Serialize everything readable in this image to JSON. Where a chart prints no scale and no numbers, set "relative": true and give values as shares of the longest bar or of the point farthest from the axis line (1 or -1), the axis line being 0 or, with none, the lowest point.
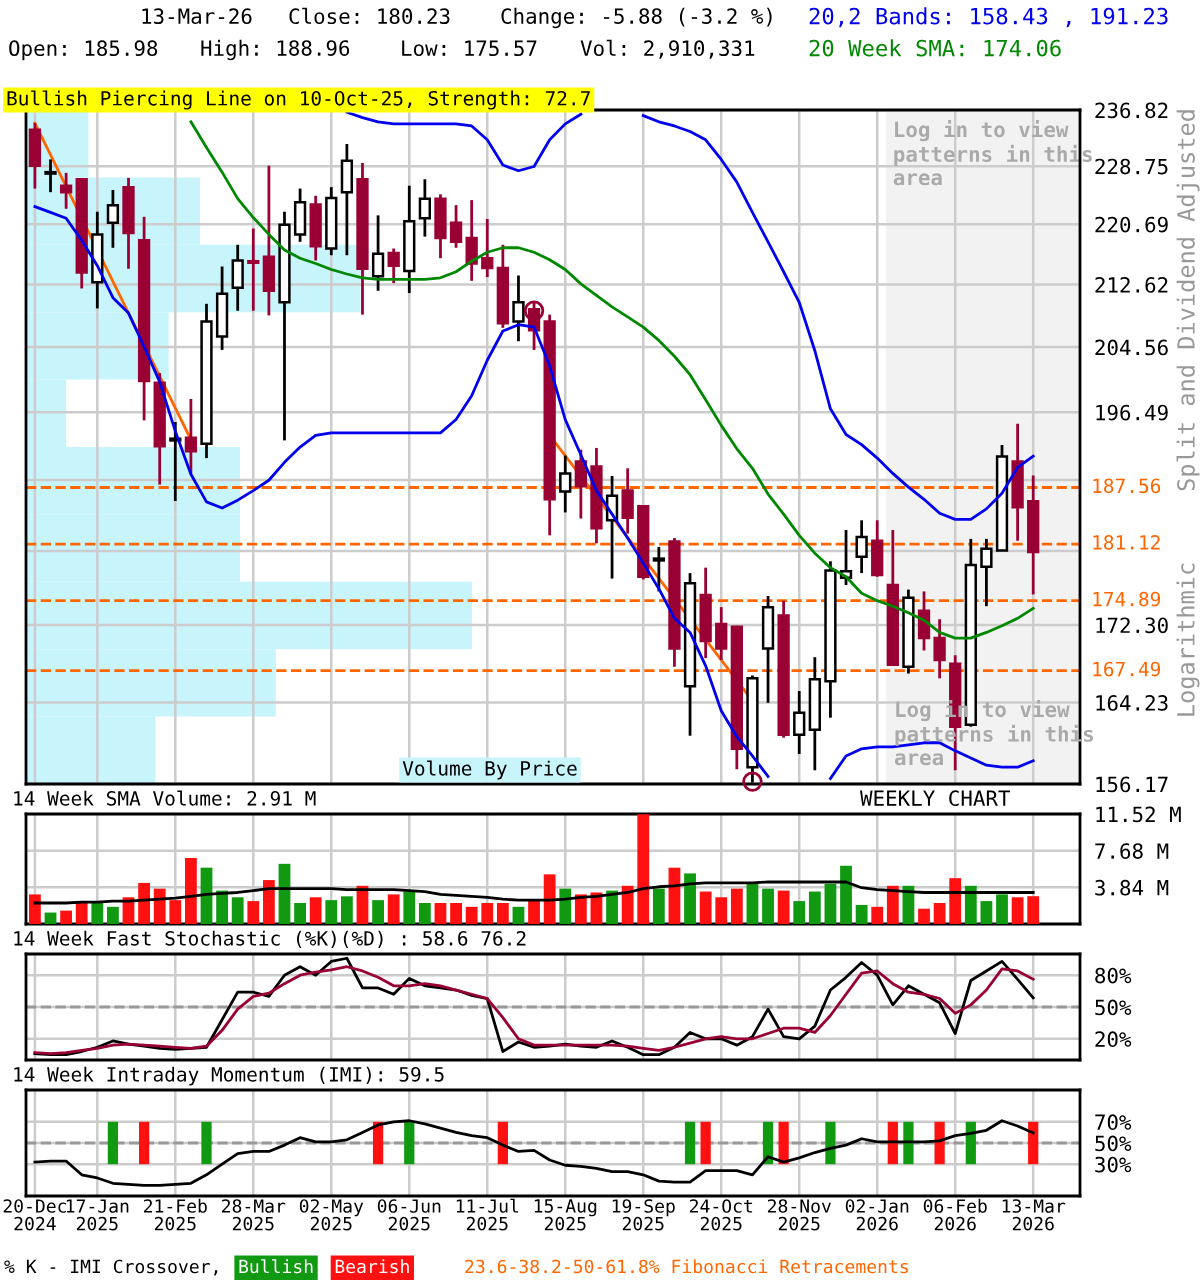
{
  "chart_data": [
    {
      "type": "candlestick",
      "title": "Bullish Piercing Line on 10-Oct-25, Strength: 72.7",
      "ylabel": "Split and Dividend Adjusted",
      "annotations": [
        "13-Mar-26",
        "Close: 180.23",
        "Change: -5.88 (-3.2 %)",
        "Open: 185.98",
        "High: 188.96",
        "Low: 175.57",
        "Vol: 2,910,331",
        "Log in to view patterns in this area",
        "Logarithmic",
        "23.6-38.2-50-61.8% Fibonacci Retracements"
      ],
      "x": [
        "2024-12-20",
        "2024-12-27",
        "2025-01-03",
        "2025-01-10",
        "2025-01-17",
        "2025-01-24",
        "2025-01-31",
        "2025-02-07",
        "2025-02-14",
        "2025-02-21",
        "2025-02-28",
        "2025-03-07",
        "2025-03-14",
        "2025-03-21",
        "2025-03-28",
        "2025-04-04",
        "2025-04-11",
        "2025-04-18",
        "2025-04-25",
        "2025-05-02",
        "2025-05-09",
        "2025-05-16",
        "2025-05-23",
        "2025-05-30",
        "2025-06-06",
        "2025-06-13",
        "2025-06-20",
        "2025-06-27",
        "2025-07-04",
        "2025-07-11",
        "2025-07-18",
        "2025-07-25",
        "2025-08-01",
        "2025-08-08",
        "2025-08-15",
        "2025-08-22",
        "2025-08-29",
        "2025-09-05",
        "2025-09-12",
        "2025-09-19",
        "2025-09-26",
        "2025-10-03",
        "2025-10-10",
        "2025-10-17",
        "2025-10-24",
        "2025-10-31",
        "2025-11-07",
        "2025-11-14",
        "2025-11-21",
        "2025-11-28",
        "2025-12-05",
        "2025-12-12",
        "2025-12-19",
        "2025-12-26",
        "2026-01-02",
        "2026-01-09",
        "2026-01-16",
        "2026-01-23",
        "2026-01-30",
        "2026-02-06",
        "2026-02-13",
        "2026-02-20",
        "2026-02-27",
        "2026-03-06",
        "2026-03-13"
      ],
      "ohlc": [
        [
          233.95,
          234.9,
          225.6,
          228.8
        ],
        [
          227.7,
          229.7,
          225.1,
          227.9
        ],
        [
          226.0,
          227.8,
          222.8,
          225.1
        ],
        [
          226.9,
          226.9,
          212.1,
          214.2
        ],
        [
          212.9,
          222.4,
          209.5,
          219.3
        ],
        [
          220.9,
          225.4,
          217.5,
          223.3
        ],
        [
          225.8,
          227.1,
          214.7,
          219.5
        ],
        [
          218.5,
          221.7,
          195.5,
          200.3
        ],
        [
          200.1,
          201.3,
          187.9,
          192.4
        ],
        [
          193.1,
          195.3,
          186.0,
          193.3
        ],
        [
          193.4,
          198.1,
          189.2,
          191.8
        ],
        [
          192.7,
          210.1,
          191.0,
          207.8
        ],
        [
          205.9,
          215.0,
          204.2,
          211.4
        ],
        [
          212.2,
          217.9,
          209.2,
          215.8
        ],
        [
          215.7,
          220.1,
          209.2,
          215.5
        ],
        [
          216.3,
          228.8,
          208.6,
          211.8
        ],
        [
          210.3,
          222.4,
          193.1,
          220.6
        ],
        [
          219.3,
          225.6,
          218.3,
          223.7
        ],
        [
          223.4,
          224.6,
          215.8,
          217.7
        ],
        [
          217.4,
          225.8,
          216.5,
          224.3
        ],
        [
          225.1,
          231.9,
          216.5,
          229.5
        ],
        [
          226.9,
          229.2,
          208.7,
          214.7
        ],
        [
          213.7,
          221.9,
          211.8,
          216.7
        ],
        [
          216.8,
          217.4,
          212.8,
          215.1
        ],
        [
          214.4,
          226.0,
          211.5,
          221.1
        ],
        [
          221.5,
          226.9,
          219.0,
          224.2
        ],
        [
          224.2,
          224.8,
          216.1,
          218.8
        ],
        [
          220.9,
          223.3,
          217.5,
          218.3
        ],
        [
          218.8,
          224.0,
          213.1,
          215.4
        ],
        [
          216.1,
          221.4,
          213.6,
          214.8
        ],
        [
          214.8,
          217.9,
          207.0,
          207.6
        ],
        [
          207.8,
          213.8,
          205.3,
          210.3
        ],
        [
          209.4,
          210.2,
          204.2,
          206.7
        ],
        [
          207.8,
          208.7,
          182.1,
          186.2
        ],
        [
          187.1,
          191.3,
          184.7,
          189.2
        ],
        [
          190.6,
          192.0,
          184.0,
          187.7
        ],
        [
          190.0,
          192.2,
          181.2,
          182.9
        ],
        [
          183.8,
          188.9,
          177.3,
          186.6
        ],
        [
          187.2,
          189.8,
          182.3,
          184.1
        ],
        [
          185.4,
          185.4,
          177.2,
          177.5
        ],
        [
          179.3,
          180.8,
          175.9,
          179.5
        ],
        [
          181.4,
          181.8,
          167.9,
          169.8
        ],
        [
          165.9,
          177.9,
          160.9,
          176.8
        ],
        [
          175.5,
          178.5,
          168.8,
          170.6
        ],
        [
          172.4,
          174.2,
          168.6,
          169.8
        ],
        [
          172.1,
          172.2,
          157.6,
          159.6
        ],
        [
          157.8,
          167.0,
          156.3,
          166.7
        ],
        [
          169.8,
          175.4,
          164.2,
          174.2
        ],
        [
          173.3,
          174.9,
          160.7,
          161.0
        ],
        [
          161.0,
          165.4,
          159.1,
          163.2
        ],
        [
          161.5,
          168.9,
          157.5,
          166.6
        ],
        [
          166.4,
          179.2,
          162.7,
          178.2
        ],
        [
          177.4,
          182.7,
          176.6,
          178.1
        ],
        [
          179.7,
          183.8,
          177.9,
          181.9
        ],
        [
          181.5,
          183.8,
          177.5,
          177.7
        ],
        [
          176.6,
          182.7,
          168.1,
          168.1
        ],
        [
          167.9,
          176.1,
          167.2,
          175.2
        ],
        [
          173.8,
          175.9,
          169.6,
          170.9
        ],
        [
          170.9,
          172.9,
          166.7,
          168.6
        ],
        [
          168.2,
          169.1,
          157.5,
          161.8
        ],
        [
          162.0,
          181.7,
          161.8,
          178.8
        ],
        [
          178.6,
          181.7,
          174.3,
          180.6
        ],
        [
          180.4,
          192.55,
          180.4,
          191.2
        ],
        [
          190.6,
          195.1,
          181.5,
          185.3
        ],
        [
          185.98,
          188.96,
          175.57,
          180.23
        ]
      ],
      "colors": [
        "#990033",
        "#ffffff",
        "#990033",
        "#990033",
        "#ffffff",
        "#ffffff",
        "#990033",
        "#990033",
        "#990033",
        "#ffffff",
        "#990033",
        "#ffffff",
        "#ffffff",
        "#ffffff",
        "#990033",
        "#990033",
        "#ffffff",
        "#ffffff",
        "#990033",
        "#ffffff",
        "#ffffff",
        "#990033",
        "#ffffff",
        "#990033",
        "#ffffff",
        "#ffffff",
        "#990033",
        "#990033",
        "#990033",
        "#990033",
        "#990033",
        "#ffffff",
        "#990033",
        "#990033",
        "#ffffff",
        "#990033",
        "#990033",
        "#ffffff",
        "#990033",
        "#990033",
        "#ffffff",
        "#990033",
        "#ffffff",
        "#990033",
        "#990033",
        "#990033",
        "#ffffff",
        "#ffffff",
        "#990033",
        "#ffffff",
        "#ffffff",
        "#ffffff",
        "#ffffff",
        "#ffffff",
        "#990033",
        "#990033",
        "#ffffff",
        "#990033",
        "#990033",
        "#990033",
        "#ffffff",
        "#ffffff",
        "#ffffff",
        "#990033",
        "#990033"
      ],
      "series": [
        {
          "type": "line",
          "name": "20,2 Bands: 158.43 , 191.23",
          "color": "#0000ee",
          "values": [
            null,
            null,
            null,
            null,
            null,
            null,
            null,
            null,
            null,
            null,
            null,
            null,
            null,
            null,
            null,
            null,
            null,
            null,
            null,
            null,
            236.5,
            235.7,
            235.1,
            234.8,
            234.8,
            234.8,
            234.8,
            234.8,
            234.5,
            232.5,
            228.9,
            228.1,
            228.7,
            232.5,
            234.8,
            236.2,
            null,
            null,
            null,
            236.0,
            235.1,
            234.5,
            233.7,
            232.5,
            229.7,
            226.5,
            222.3,
            218.3,
            214.3,
            210.3,
            204.1,
            196.9,
            193.8,
            192.6,
            191.0,
            189.2,
            187.6,
            186.2,
            184.6,
            183.9,
            183.9,
            185.1,
            186.9,
            189.9,
            191.23
          ]
        },
        {
          "type": "line",
          "color": "#0000ee",
          "values": [
            223.1,
            222.3,
            221.5,
            218.5,
            215.1,
            210.9,
            208.9,
            204.6,
            200.2,
            194.2,
            189.1,
            185.9,
            185.2,
            186.1,
            187.2,
            188.4,
            190.5,
            192.3,
            193.7,
            194.0,
            194.0,
            194.0,
            194.0,
            194.0,
            194.0,
            194.0,
            194.0,
            195.6,
            198.5,
            202.9,
            206.6,
            207.4,
            207.1,
            202.2,
            195.6,
            191.4,
            187.2,
            184.5,
            181.8,
            179.0,
            176.2,
            173.0,
            171.5,
            168.0,
            163.4,
            160.8,
            158.9,
            156.9,
            null,
            null,
            null,
            156.7,
            158.9,
            159.6,
            159.8,
            159.8,
            160.0,
            160.2,
            160.2,
            159.4,
            158.7,
            158.0,
            157.8,
            157.8,
            158.43
          ]
        },
        {
          "type": "line",
          "name": "20 Week SMA: 174.06",
          "color": "#008800",
          "values": [
            null,
            null,
            null,
            null,
            null,
            null,
            null,
            null,
            null,
            null,
            235.1,
            231.4,
            227.9,
            224.2,
            221.6,
            219.3,
            217.2,
            216.1,
            215.4,
            214.6,
            214.0,
            213.5,
            213.3,
            213.3,
            213.3,
            213.3,
            213.5,
            214.3,
            215.7,
            216.9,
            217.5,
            217.5,
            216.9,
            215.9,
            214.6,
            212.7,
            211.2,
            209.7,
            208.4,
            207.1,
            205.4,
            203.4,
            201.1,
            198.0,
            194.9,
            192.1,
            189.8,
            186.8,
            184.5,
            182.1,
            180.1,
            178.5,
            177.5,
            175.7,
            174.9,
            174.3,
            173.6,
            172.8,
            171.5,
            170.9,
            170.9,
            171.5,
            172.2,
            173.0,
            174.06
          ]
        },
        {
          "type": "line",
          "color": "#ff6600",
          "x": [
            "2024-12-20",
            "2025-02-28"
          ],
          "values": [
            234.9,
            193.2
          ]
        },
        {
          "type": "line",
          "color": "#ff6600",
          "x": [
            "2025-08-08",
            "2025-11-07"
          ],
          "values": [
            193.7,
            164.4
          ]
        },
        {
          "type": "scatter",
          "color": "#990033",
          "marker": "circle",
          "x": [
            "2025-08-01",
            "2025-11-07"
          ],
          "values": [
            209.2,
            156.4
          ]
        }
      ],
      "ref_lines": [
        {
          "axis": "y",
          "value": 187.56,
          "label": "187.56",
          "color": "#ff6600",
          "line_style": "dashed"
        },
        {
          "axis": "y",
          "value": 181.12,
          "label": "181.12",
          "color": "#ff6600",
          "line_style": "dashed"
        },
        {
          "axis": "y",
          "value": 174.89,
          "label": "174.89",
          "color": "#ff6600",
          "line_style": "dashed"
        },
        {
          "axis": "y",
          "value": 167.49,
          "label": "167.49",
          "color": "#ff6600",
          "line_style": "dashed"
        }
      ],
      "bands": [
        {
          "axis": "x",
          "from": "2026-01-06",
          "to": "2026-04-03",
          "label": "Log in to view patterns in this area",
          "color": "#f2f2f2"
        }
      ],
      "log": true,
      "legend": "top right",
      "grid": true,
      "tick_labels": "y",
      "xlim": [
        "2024-12-16",
        "2026-04-03"
      ],
      "ylim": [
        156.17,
        236.82
      ],
      "xticks": [
        {
          "value": "2024-12-20",
          "label": null
        },
        {
          "value": "2025-01-17",
          "label": null
        },
        {
          "value": "2025-02-21",
          "label": null
        },
        {
          "value": "2025-03-28",
          "label": null
        },
        {
          "value": "2025-05-02",
          "label": null
        },
        {
          "value": "2025-06-06",
          "label": null
        },
        {
          "value": "2025-07-11",
          "label": null
        },
        {
          "value": "2025-08-15",
          "label": null
        },
        {
          "value": "2025-09-19",
          "label": null
        },
        {
          "value": "2025-10-24",
          "label": null
        },
        {
          "value": "2025-11-28",
          "label": null
        },
        {
          "value": "2026-01-02",
          "label": null
        },
        {
          "value": "2026-02-06",
          "label": null
        },
        {
          "value": "2026-03-13",
          "label": null
        }
      ],
      "yticks": [
        156.17,
        164.23,
        {
          "value": 172.3,
          "label": "172.30"
        },
        {
          "value": 180.36,
          "label": null
        },
        {
          "value": 188.43,
          "label": null
        },
        196.49,
        204.56,
        212.62,
        220.69,
        228.75,
        236.82
      ]
    },
    {
      "type": "bar",
      "title": "Volume By Price",
      "orientation": "horizontal",
      "relative": true,
      "color": "#c8f4fc",
      "categories": [
        null,
        null,
        null,
        null,
        null,
        null,
        null,
        null,
        null,
        null
      ],
      "values": [
        0.14,
        0.39,
        0.75,
        0.32,
        0.09,
        0.48,
        0.48,
        1,
        0.56,
        0.29
      ]
    },
    {
      "type": "bar",
      "title": "14 Week SMA Volume: 2.91 M",
      "annotations": [
        "WEEKLY CHART"
      ],
      "x": [
        "2024-12-20",
        "2024-12-27",
        "2025-01-03",
        "2025-01-10",
        "2025-01-17",
        "2025-01-24",
        "2025-01-31",
        "2025-02-07",
        "2025-02-14",
        "2025-02-21",
        "2025-02-28",
        "2025-03-07",
        "2025-03-14",
        "2025-03-21",
        "2025-03-28",
        "2025-04-04",
        "2025-04-11",
        "2025-04-18",
        "2025-04-25",
        "2025-05-02",
        "2025-05-09",
        "2025-05-16",
        "2025-05-23",
        "2025-05-30",
        "2025-06-06",
        "2025-06-13",
        "2025-06-20",
        "2025-06-27",
        "2025-07-04",
        "2025-07-11",
        "2025-07-18",
        "2025-07-25",
        "2025-08-01",
        "2025-08-08",
        "2025-08-15",
        "2025-08-22",
        "2025-08-29",
        "2025-09-05",
        "2025-09-12",
        "2025-09-19",
        "2025-09-26",
        "2025-10-03",
        "2025-10-10",
        "2025-10-17",
        "2025-10-24",
        "2025-10-31",
        "2025-11-07",
        "2025-11-14",
        "2025-11-21",
        "2025-11-28",
        "2025-12-05",
        "2025-12-12",
        "2025-12-19",
        "2025-12-26",
        "2026-01-02",
        "2026-01-09",
        "2026-01-16",
        "2026-01-23",
        "2026-01-30",
        "2026-02-06",
        "2026-02-13",
        "2026-02-20",
        "2026-02-27",
        "2026-03-06",
        "2026-03-13"
      ],
      "series": [
        {
          "type": "bar",
          "colors": [
            "#ff1111",
            "#119911",
            "#ff1111",
            "#ff1111",
            "#119911",
            "#119911",
            "#ff1111",
            "#ff1111",
            "#ff1111",
            "#ff1111",
            "#ff1111",
            "#119911",
            "#119911",
            "#119911",
            "#ff1111",
            "#ff1111",
            "#119911",
            "#119911",
            "#ff1111",
            "#119911",
            "#119911",
            "#ff1111",
            "#119911",
            "#ff1111",
            "#119911",
            "#119911",
            "#ff1111",
            "#ff1111",
            "#ff1111",
            "#ff1111",
            "#ff1111",
            "#119911",
            "#ff1111",
            "#ff1111",
            "#119911",
            "#ff1111",
            "#ff1111",
            "#119911",
            "#ff1111",
            "#ff1111",
            "#119911",
            "#ff1111",
            "#119911",
            "#ff1111",
            "#ff1111",
            "#ff1111",
            "#119911",
            "#119911",
            "#ff1111",
            "#119911",
            "#119911",
            "#119911",
            "#119911",
            "#119911",
            "#ff1111",
            "#ff1111",
            "#119911",
            "#ff1111",
            "#ff1111",
            "#ff1111",
            "#119911",
            "#119911",
            "#119911",
            "#ff1111",
            "#ff1111"
          ],
          "values": [
            3.1,
            1.2,
            1.4,
            2.3,
            2.3,
            1.8,
            2.8,
            4.3,
            3.7,
            2.5,
            6.9,
            5.9,
            3.5,
            2.8,
            2.4,
            4.6,
            6.3,
            2.2,
            2.8,
            2.5,
            2.9,
            4.0,
            2.5,
            3.1,
            3.4,
            2.2,
            2.2,
            2.2,
            1.8,
            2.2,
            2.2,
            1.8,
            2.5,
            5.2,
            3.7,
            3.1,
            3.3,
            3.5,
            4.0,
            11.5,
            3.7,
            5.9,
            5.3,
            3.4,
            2.8,
            3.7,
            4.4,
            3.7,
            3.5,
            2.4,
            3.4,
            4.2,
            6.1,
            2.0,
            1.8,
            4.0,
            4.0,
            1.6,
            2.2,
            4.8,
            4.0,
            2.4,
            3.1,
            2.8,
            2.91
          ]
        },
        {
          "type": "line",
          "color": "#000000",
          "values": [
            2.2,
            2.2,
            2.2,
            2.3,
            2.3,
            2.4,
            2.4,
            2.5,
            2.6,
            2.7,
            2.9,
            3.1,
            3.2,
            3.3,
            3.5,
            3.7,
            3.7,
            3.7,
            3.7,
            3.7,
            3.6,
            3.6,
            3.6,
            3.6,
            3.5,
            3.4,
            3.1,
            3.0,
            2.9,
            2.8,
            2.6,
            2.5,
            2.5,
            2.5,
            2.6,
            2.8,
            2.9,
            3.1,
            3.3,
            3.7,
            3.9,
            4.0,
            4.2,
            4.3,
            4.3,
            4.3,
            4.3,
            4.4,
            4.4,
            4.4,
            4.4,
            4.4,
            4.4,
            3.8,
            3.6,
            3.5,
            3.4,
            3.3,
            3.3,
            3.3,
            3.3,
            3.3,
            3.3,
            3.3,
            3.3
          ]
        }
      ],
      "grid": true,
      "tick_labels": "y",
      "xlim": [
        "2024-12-16",
        "2026-04-03"
      ],
      "ylim": [
        0,
        11.52
      ],
      "xticks": [
        {
          "value": "2024-12-20",
          "label": null
        },
        {
          "value": "2025-01-17",
          "label": null
        },
        {
          "value": "2025-02-21",
          "label": null
        },
        {
          "value": "2025-03-28",
          "label": null
        },
        {
          "value": "2025-05-02",
          "label": null
        },
        {
          "value": "2025-06-06",
          "label": null
        },
        {
          "value": "2025-07-11",
          "label": null
        },
        {
          "value": "2025-08-15",
          "label": null
        },
        {
          "value": "2025-09-19",
          "label": null
        },
        {
          "value": "2025-10-24",
          "label": null
        },
        {
          "value": "2025-11-28",
          "label": null
        },
        {
          "value": "2026-01-02",
          "label": null
        },
        {
          "value": "2026-02-06",
          "label": null
        },
        {
          "value": "2026-03-13",
          "label": null
        }
      ],
      "yticks": [
        {
          "value": 3.84,
          "label": "3.84 M"
        },
        {
          "value": 7.68,
          "label": "7.68 M"
        },
        {
          "value": 11.52,
          "label": "11.52 M"
        }
      ]
    },
    {
      "type": "line",
      "title": "14 Week Fast Stochastic (%K)(%D) : 58.6 76.2",
      "x": [
        "2024-12-20",
        "2024-12-27",
        "2025-01-03",
        "2025-01-10",
        "2025-01-17",
        "2025-01-24",
        "2025-01-31",
        "2025-02-07",
        "2025-02-14",
        "2025-02-21",
        "2025-02-28",
        "2025-03-07",
        "2025-03-14",
        "2025-03-21",
        "2025-03-28",
        "2025-04-04",
        "2025-04-11",
        "2025-04-18",
        "2025-04-25",
        "2025-05-02",
        "2025-05-09",
        "2025-05-16",
        "2025-05-23",
        "2025-05-30",
        "2025-06-06",
        "2025-06-13",
        "2025-06-20",
        "2025-06-27",
        "2025-07-04",
        "2025-07-11",
        "2025-07-18",
        "2025-07-25",
        "2025-08-01",
        "2025-08-08",
        "2025-08-15",
        "2025-08-22",
        "2025-08-29",
        "2025-09-05",
        "2025-09-12",
        "2025-09-19",
        "2025-09-26",
        "2025-10-03",
        "2025-10-10",
        "2025-10-17",
        "2025-10-24",
        "2025-10-31",
        "2025-11-07",
        "2025-11-14",
        "2025-11-21",
        "2025-11-28",
        "2025-12-05",
        "2025-12-12",
        "2025-12-19",
        "2025-12-26",
        "2026-01-02",
        "2026-01-09",
        "2026-01-16",
        "2026-01-23",
        "2026-01-30",
        "2026-02-06",
        "2026-02-13",
        "2026-02-20",
        "2026-02-27",
        "2026-03-06",
        "2026-03-13"
      ],
      "series": [
        {
          "type": "line",
          "color": "#000000",
          "values": [
            6,
            5,
            5,
            8,
            12,
            18,
            15,
            13,
            11,
            10,
            11,
            12,
            38,
            64,
            64,
            60,
            80,
            88,
            80,
            93,
            96,
            68,
            68,
            62,
            77,
            70,
            68,
            66,
            61,
            58,
            8,
            17,
            12,
            13,
            15,
            13,
            12,
            18,
            12,
            5,
            5,
            12,
            26,
            20,
            20,
            14,
            22,
            48,
            22,
            20,
            32,
            66,
            78,
            92,
            80,
            52,
            70,
            62,
            54,
            25,
            75,
            84,
            93,
            76,
            58.6
          ]
        },
        {
          "type": "line",
          "color": "#990033",
          "values": [
            7,
            6,
            7,
            9,
            11,
            14,
            15,
            14,
            13,
            12,
            11,
            13,
            28,
            48,
            60,
            63,
            72,
            80,
            83,
            85,
            88,
            84,
            78,
            70,
            70,
            72,
            70,
            66,
            62,
            58,
            40,
            20,
            14,
            14,
            14,
            14,
            14,
            14,
            13,
            11,
            9,
            12,
            16,
            20,
            22,
            20,
            20,
            25,
            30,
            30,
            26,
            42,
            62,
            82,
            84,
            72,
            64,
            62,
            58,
            44,
            52,
            66,
            86,
            84,
            76.2
          ]
        }
      ],
      "ref_lines": [
        {
          "axis": "y",
          "value": 50,
          "color": "#999999",
          "line_style": "dashed"
        }
      ],
      "grid": true,
      "tick_labels": "y",
      "xlim": [
        "2024-12-16",
        "2026-04-03"
      ],
      "ylim": [
        0,
        100
      ],
      "xticks": [
        {
          "value": "2024-12-20",
          "label": null
        },
        {
          "value": "2025-01-17",
          "label": null
        },
        {
          "value": "2025-02-21",
          "label": null
        },
        {
          "value": "2025-03-28",
          "label": null
        },
        {
          "value": "2025-05-02",
          "label": null
        },
        {
          "value": "2025-06-06",
          "label": null
        },
        {
          "value": "2025-07-11",
          "label": null
        },
        {
          "value": "2025-08-15",
          "label": null
        },
        {
          "value": "2025-09-19",
          "label": null
        },
        {
          "value": "2025-10-24",
          "label": null
        },
        {
          "value": "2025-11-28",
          "label": null
        },
        {
          "value": "2026-01-02",
          "label": null
        },
        {
          "value": "2026-02-06",
          "label": null
        },
        {
          "value": "2026-03-13",
          "label": null
        }
      ],
      "yticks": [
        {
          "value": 20,
          "label": "20%"
        },
        {
          "value": 50,
          "label": "50%"
        },
        {
          "value": 80,
          "label": "80%"
        }
      ]
    },
    {
      "type": "bar",
      "title": "14 Week Intraday Momentum (IMI): 59.5",
      "legend": "bottom left",
      "legend_title": "% K - IMI Crossover,",
      "x": [
        "2024-12-20",
        "2024-12-27",
        "2025-01-03",
        "2025-01-10",
        "2025-01-17",
        "2025-01-24",
        "2025-01-31",
        "2025-02-07",
        "2025-02-14",
        "2025-02-21",
        "2025-02-28",
        "2025-03-07",
        "2025-03-14",
        "2025-03-21",
        "2025-03-28",
        "2025-04-04",
        "2025-04-11",
        "2025-04-18",
        "2025-04-25",
        "2025-05-02",
        "2025-05-09",
        "2025-05-16",
        "2025-05-23",
        "2025-05-30",
        "2025-06-06",
        "2025-06-13",
        "2025-06-20",
        "2025-06-27",
        "2025-07-04",
        "2025-07-11",
        "2025-07-18",
        "2025-07-25",
        "2025-08-01",
        "2025-08-08",
        "2025-08-15",
        "2025-08-22",
        "2025-08-29",
        "2025-09-05",
        "2025-09-12",
        "2025-09-19",
        "2025-09-26",
        "2025-10-03",
        "2025-10-10",
        "2025-10-17",
        "2025-10-24",
        "2025-10-31",
        "2025-11-07",
        "2025-11-14",
        "2025-11-21",
        "2025-11-28",
        "2025-12-05",
        "2025-12-12",
        "2025-12-19",
        "2025-12-26",
        "2026-01-02",
        "2026-01-09",
        "2026-01-16",
        "2026-01-23",
        "2026-01-30",
        "2026-02-06",
        "2026-02-13",
        "2026-02-20",
        "2026-02-27",
        "2026-03-06",
        "2026-03-13"
      ],
      "series": [
        {
          "type": "bar",
          "name": "Bullish",
          "color": "#119911",
          "values": [
            null,
            null,
            null,
            null,
            null,
            40,
            null,
            null,
            null,
            null,
            null,
            40,
            null,
            null,
            null,
            null,
            null,
            null,
            null,
            null,
            null,
            null,
            null,
            null,
            40,
            null,
            null,
            null,
            null,
            null,
            null,
            null,
            null,
            null,
            null,
            null,
            null,
            null,
            null,
            null,
            null,
            null,
            40,
            null,
            null,
            null,
            null,
            40,
            null,
            null,
            null,
            40,
            null,
            null,
            null,
            null,
            40,
            null,
            null,
            null,
            40,
            null,
            null,
            null,
            null
          ],
          "base": [
            null,
            null,
            null,
            null,
            null,
            30,
            null,
            null,
            null,
            null,
            null,
            30,
            null,
            null,
            null,
            null,
            null,
            null,
            null,
            null,
            null,
            null,
            null,
            null,
            30,
            null,
            null,
            null,
            null,
            null,
            null,
            null,
            null,
            null,
            null,
            null,
            null,
            null,
            null,
            null,
            null,
            null,
            30,
            null,
            null,
            null,
            null,
            30,
            null,
            null,
            null,
            30,
            null,
            null,
            null,
            null,
            30,
            null,
            null,
            null,
            30,
            null,
            null,
            null,
            null
          ]
        },
        {
          "type": "bar",
          "name": "Bearish",
          "color": "#ff1111",
          "values": [
            null,
            null,
            null,
            null,
            null,
            null,
            null,
            40,
            null,
            null,
            null,
            null,
            null,
            null,
            null,
            null,
            null,
            null,
            null,
            null,
            null,
            null,
            40,
            null,
            null,
            null,
            null,
            null,
            null,
            null,
            40,
            null,
            null,
            null,
            null,
            null,
            null,
            null,
            null,
            null,
            null,
            null,
            null,
            40,
            null,
            null,
            null,
            null,
            40,
            null,
            null,
            null,
            null,
            null,
            null,
            40,
            null,
            null,
            40,
            null,
            null,
            null,
            null,
            null,
            40
          ],
          "base": [
            null,
            null,
            null,
            null,
            null,
            null,
            null,
            30,
            null,
            null,
            null,
            null,
            null,
            null,
            null,
            null,
            null,
            null,
            null,
            null,
            null,
            null,
            30,
            null,
            null,
            null,
            null,
            null,
            null,
            null,
            30,
            null,
            null,
            null,
            null,
            null,
            null,
            null,
            null,
            null,
            null,
            null,
            null,
            30,
            null,
            null,
            null,
            null,
            30,
            null,
            null,
            null,
            null,
            null,
            null,
            30,
            null,
            null,
            30,
            null,
            null,
            null,
            null,
            null,
            30
          ]
        },
        {
          "type": "line",
          "color": "#000000",
          "values": [
            32,
            33,
            33,
            20,
            17,
            12,
            11,
            10,
            10,
            11,
            12,
            20,
            30,
            40,
            42,
            42,
            48,
            55,
            51,
            51,
            53,
            60,
            67,
            70,
            71,
            68,
            64,
            60,
            57,
            55,
            48,
            42,
            43,
            34,
            29,
            28,
            26,
            23,
            23,
            20,
            14,
            13,
            13,
            24,
            24,
            24,
            20,
            37,
            32,
            36,
            41,
            45,
            48,
            54,
            51,
            51,
            51,
            51,
            52,
            57,
            59,
            62,
            71,
            66,
            59.5
          ]
        }
      ],
      "ref_lines": [
        {
          "axis": "y",
          "value": 50,
          "color": "#999999",
          "line_style": "dashed"
        }
      ],
      "grid": true,
      "xlim": [
        "2024-12-16",
        "2026-04-03"
      ],
      "ylim": [
        0,
        100
      ],
      "xticks": [
        {
          "value": "2024-12-20",
          "label": "20-Dec\n2024"
        },
        {
          "value": "2025-01-17",
          "label": "17-Jan\n2025"
        },
        {
          "value": "2025-02-21",
          "label": "21-Feb\n2025"
        },
        {
          "value": "2025-03-28",
          "label": "28-Mar\n2025"
        },
        {
          "value": "2025-05-02",
          "label": "02-May\n2025"
        },
        {
          "value": "2025-06-06",
          "label": "06-Jun\n2025"
        },
        {
          "value": "2025-07-11",
          "label": "11-Jul\n2025"
        },
        {
          "value": "2025-08-15",
          "label": "15-Aug\n2025"
        },
        {
          "value": "2025-09-19",
          "label": "19-Sep\n2025"
        },
        {
          "value": "2025-10-24",
          "label": "24-Oct\n2025"
        },
        {
          "value": "2025-11-28",
          "label": "28-Nov\n2025"
        },
        {
          "value": "2026-01-02",
          "label": "02-Jan\n2026"
        },
        {
          "value": "2026-02-06",
          "label": "06-Feb\n2026"
        },
        {
          "value": "2026-03-13",
          "label": "13-Mar\n2026"
        }
      ],
      "yticks": [
        {
          "value": 30,
          "label": "30%"
        },
        {
          "value": 50,
          "label": "50%"
        },
        {
          "value": 70,
          "label": "70%"
        }
      ]
    }
  ]
}
